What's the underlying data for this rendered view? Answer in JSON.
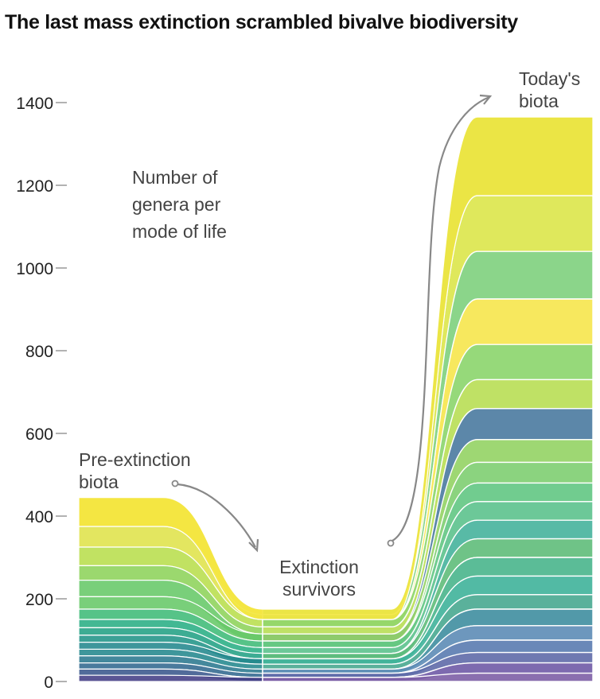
{
  "title": "The last mass extinction scrambled bivalve biodiversity",
  "chart_data": {
    "type": "area",
    "title": "The last mass extinction scrambled bivalve biodiversity",
    "stages": [
      "Pre-extinction biota",
      "Extinction survivors",
      "Today's biota"
    ],
    "ylabel": "Number of genera per mode of life",
    "ylim": [
      0,
      1400
    ],
    "yticks": [
      0,
      200,
      400,
      600,
      800,
      1000,
      1200,
      1400
    ],
    "grid": false,
    "totals": [
      445,
      175,
      1365
    ],
    "series_colors": [
      "#f5e34a",
      "#dfe34a",
      "#b8de4c",
      "#8dd35a",
      "#66c868",
      "#3fbb78",
      "#29ae84",
      "#22a184",
      "#219487",
      "#23878d",
      "#2a788e",
      "#31688e",
      "#39568c",
      "#433e85",
      "#482575"
    ],
    "pre_extinction_boundaries": [
      0,
      15,
      30,
      45,
      62,
      78,
      95,
      112,
      130,
      150,
      175,
      205,
      245,
      280,
      325,
      375,
      445
    ],
    "survivor_boundaries": [
      0,
      10,
      20,
      30,
      42,
      55,
      68,
      82,
      98,
      115,
      132,
      150,
      162,
      175
    ],
    "today_boundaries": [
      0,
      20,
      45,
      70,
      100,
      135,
      175,
      210,
      255,
      300,
      345,
      390,
      435,
      480,
      530,
      585,
      660,
      730,
      815,
      925,
      1040,
      1175,
      1365
    ],
    "today_band_colors": [
      "#7d5fa6",
      "#6f5aa6",
      "#5f6aa8",
      "#5a7bb0",
      "#5d8cb6",
      "#3f8ea0",
      "#48a990",
      "#3fb39a",
      "#49b58c",
      "#5fbd7a",
      "#46b39c",
      "#5cc28d",
      "#62c683",
      "#7ece71",
      "#93d364",
      "#4a7aa0",
      "#b8de54",
      "#8bd56c",
      "#f6e64d",
      "#7ed07d",
      "#dce64a",
      "#80d079",
      "#e8e642"
    ]
  },
  "annotations": {
    "label_title": "Number of\ngenera per\nmode of life",
    "pre_label": "Pre-extinction\nbiota",
    "survivors_label": "Extinction\nsurvivors",
    "today_label": "Today's\nbiota"
  }
}
